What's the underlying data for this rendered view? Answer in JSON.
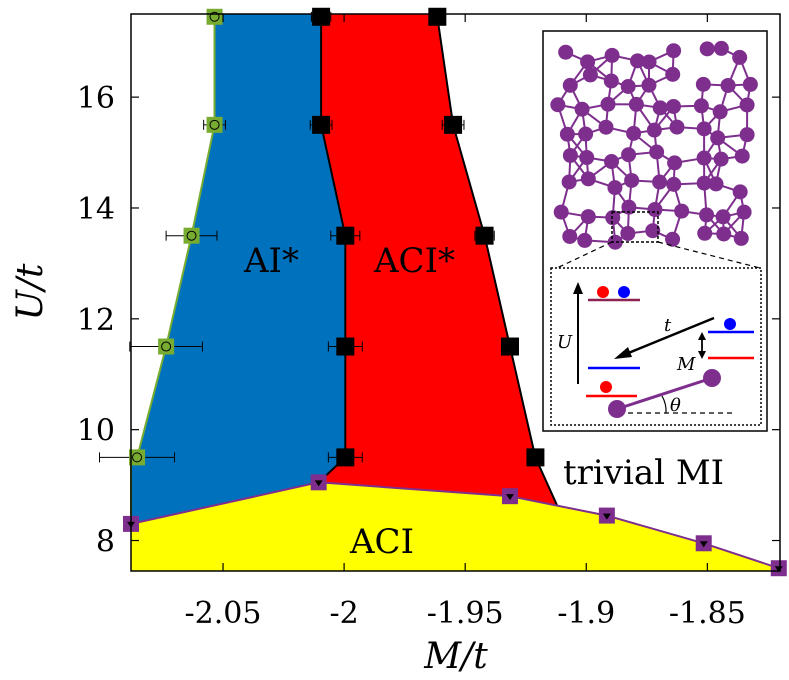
{
  "chart_data": {
    "type": "scatter",
    "title": "",
    "xlabel": "M/t",
    "ylabel": "U/t",
    "xlim": [
      -2.088,
      -1.82
    ],
    "ylim": [
      7.45,
      17.5
    ],
    "xticks": [
      -2.05,
      -2.0,
      -1.95,
      -1.9,
      -1.85
    ],
    "xtick_labels": [
      "-2.05",
      "-2",
      "-1.95",
      "-1.9",
      "-1.85"
    ],
    "yticks": [
      8,
      10,
      12,
      14,
      16
    ],
    "ytick_labels": [
      "8",
      "10",
      "12",
      "14",
      "16"
    ],
    "grid": false,
    "legend": "none",
    "colors": {
      "ai_star": "#0072bd",
      "aci_star": "#ff0000",
      "aci": "#ffff00",
      "green_marker": "#77ac30",
      "purple_marker": "#7e2f8e",
      "black_marker": "#000000",
      "graph": "#7e2f8e"
    },
    "region_labels": [
      "AI*",
      "ACI*",
      "ACI",
      "trivial MI"
    ],
    "series": [
      {
        "marker": "green-square",
        "points": [
          {
            "x": -2.0855,
            "y": 9.5,
            "xerr": 0.0155
          },
          {
            "x": -2.0735,
            "y": 11.5,
            "xerr": 0.015
          },
          {
            "x": -2.063,
            "y": 13.5,
            "xerr": 0.0105
          },
          {
            "x": -2.0535,
            "y": 15.5,
            "xerr": 0.0045
          },
          {
            "x": -2.0535,
            "y": 17.45,
            "xerr": 0.003
          }
        ]
      },
      {
        "marker": "black-square",
        "points": [
          {
            "x": -1.9995,
            "y": 9.5,
            "xerr": 0.007
          },
          {
            "x": -1.9995,
            "y": 11.5,
            "xerr": 0.007
          },
          {
            "x": -1.9995,
            "y": 13.5,
            "xerr": 0.006
          },
          {
            "x": -2.0095,
            "y": 15.5,
            "xerr": 0.0045
          },
          {
            "x": -2.0095,
            "y": 17.45,
            "xerr": 0.004
          },
          {
            "x": -1.921,
            "y": 9.5,
            "xerr": 0.0025
          },
          {
            "x": -1.9315,
            "y": 11.5,
            "xerr": 0.003
          },
          {
            "x": -1.942,
            "y": 13.5,
            "xerr": 0.004
          },
          {
            "x": -1.955,
            "y": 15.5,
            "xerr": 0.0045
          },
          {
            "x": -1.9615,
            "y": 17.45,
            "xerr": 0.003
          }
        ]
      },
      {
        "marker": "purple-square",
        "points": [
          {
            "x": -2.088,
            "y": 8.3
          },
          {
            "x": -2.0105,
            "y": 9.05
          },
          {
            "x": -1.9315,
            "y": 8.8
          },
          {
            "x": -1.8915,
            "y": 8.45
          },
          {
            "x": -1.8515,
            "y": 7.95
          },
          {
            "x": -1.8205,
            "y": 7.5
          }
        ]
      }
    ],
    "inset": {
      "labels": {
        "U": "U",
        "t": "t",
        "M": "M",
        "theta": "θ"
      }
    }
  }
}
